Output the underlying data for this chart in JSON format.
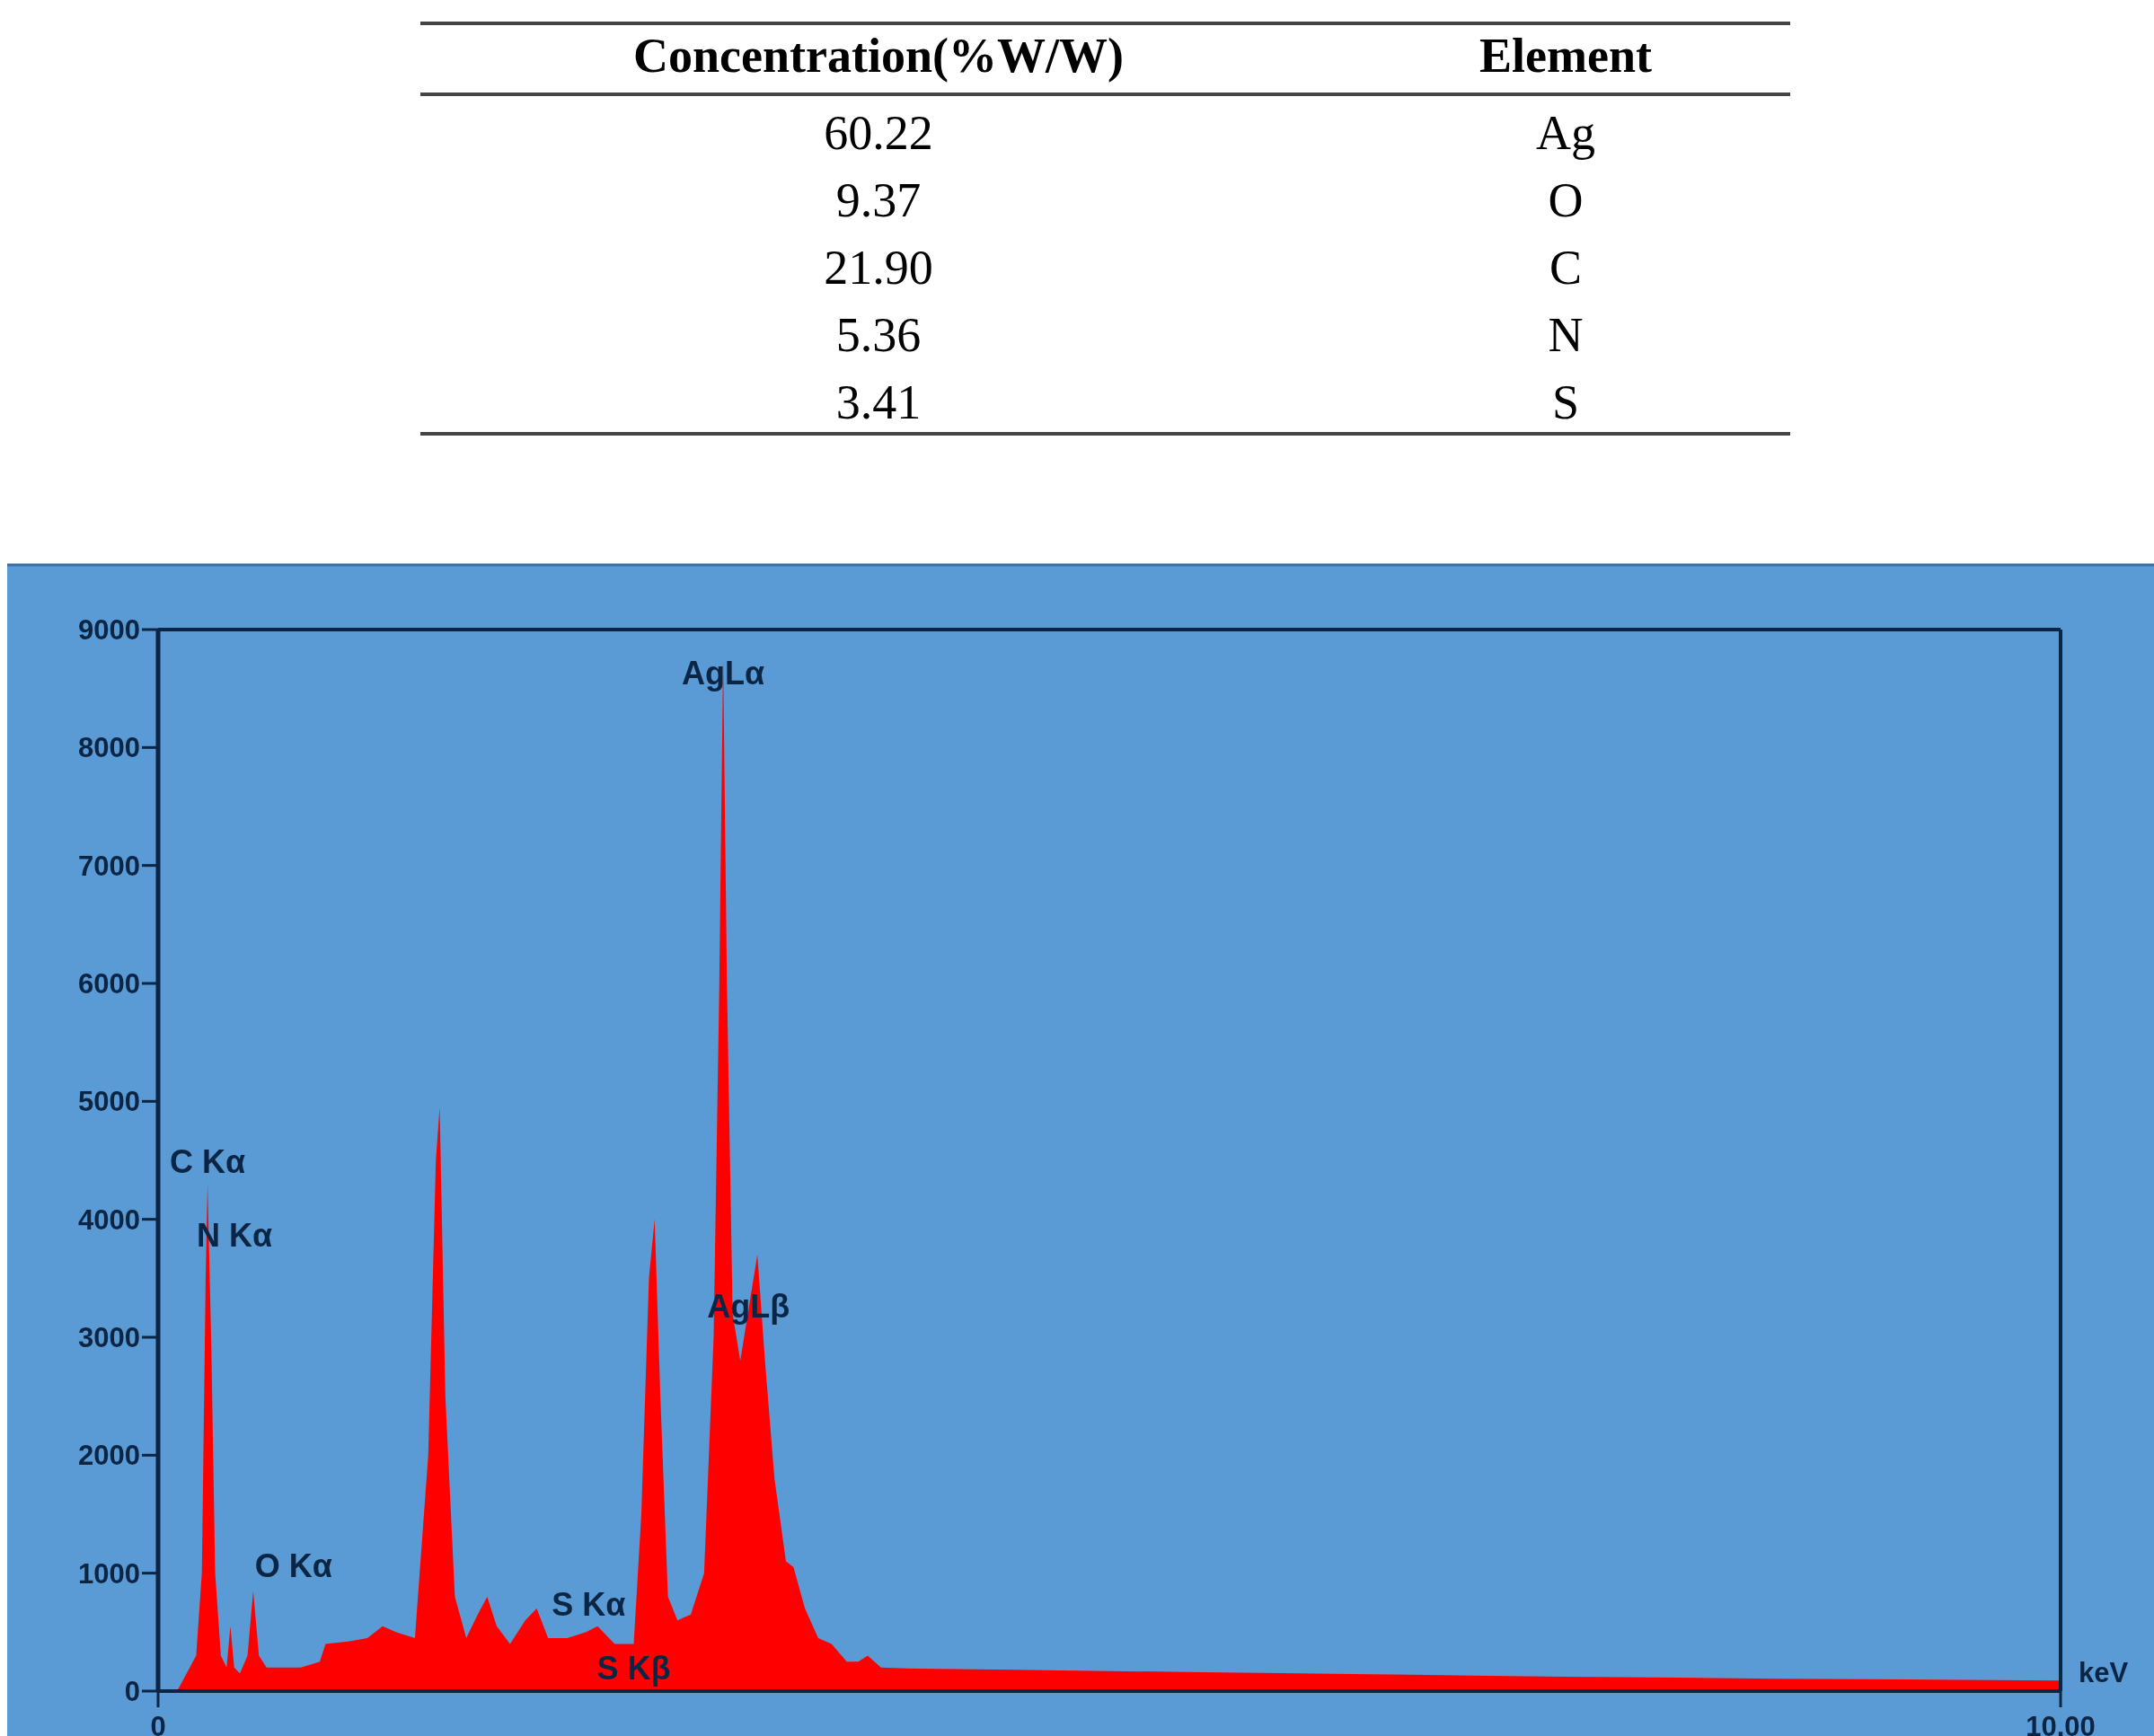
{
  "chart_data": [
    {
      "type": "other",
      "ylabel": "Concentration(%W/W)",
      "xlabel": "Element",
      "categories": [
        "Ag",
        "O",
        "C",
        "N",
        "S"
      ],
      "values": [
        60.22,
        9.37,
        21.9,
        5.36,
        3.41
      ],
      "value_labels": [
        "60.22",
        "9.37",
        "21.90",
        "5.36",
        "3.41"
      ]
    },
    {
      "type": "area",
      "xlabel": "keV",
      "color": "#ff0000",
      "x": [
        0.0,
        0.1,
        0.15,
        0.2,
        0.23,
        0.25,
        0.26,
        0.28,
        0.3,
        0.33,
        0.36,
        0.38,
        0.4,
        0.43,
        0.47,
        0.5,
        0.53,
        0.57,
        0.65,
        0.75,
        0.85,
        0.88,
        1.0,
        1.1,
        1.18,
        1.25,
        1.35,
        1.42,
        1.46,
        1.48,
        1.51,
        1.56,
        1.62,
        1.68,
        1.73,
        1.78,
        1.85,
        1.93,
        1.99,
        2.05,
        2.15,
        2.25,
        2.31,
        2.4,
        2.5,
        2.54,
        2.58,
        2.61,
        2.64,
        2.68,
        2.73,
        2.8,
        2.87,
        2.92,
        2.95,
        2.97,
        2.99,
        3.02,
        3.06,
        3.1,
        3.15,
        3.19,
        3.24,
        3.3,
        3.34,
        3.4,
        3.47,
        3.54,
        3.62,
        3.68,
        3.73,
        3.8,
        4.0,
        4.5,
        5.0,
        5.5,
        6.0,
        6.5,
        7.0,
        7.5,
        8.0,
        8.5,
        9.0,
        9.5,
        10.0
      ],
      "values": [
        0,
        0,
        150,
        300,
        1000,
        3500,
        4300,
        2900,
        1000,
        300,
        200,
        550,
        200,
        150,
        300,
        850,
        300,
        200,
        200,
        200,
        250,
        400,
        420,
        450,
        550,
        500,
        450,
        2000,
        4500,
        4950,
        2500,
        800,
        450,
        650,
        800,
        550,
        400,
        600,
        700,
        450,
        450,
        500,
        550,
        400,
        400,
        1500,
        3500,
        4000,
        2500,
        800,
        600,
        650,
        1000,
        3000,
        6000,
        8750,
        6000,
        3200,
        2800,
        3200,
        3700,
        2800,
        1800,
        1100,
        1050,
        700,
        450,
        400,
        250,
        250,
        300,
        200,
        190,
        180,
        170,
        160,
        150,
        140,
        130,
        120,
        115,
        105,
        100,
        95,
        90
      ],
      "xlim": [
        0,
        10
      ],
      "ylim": [
        0,
        9000
      ],
      "xticks": [
        {
          "value": 0,
          "label": "0"
        },
        {
          "value": 10,
          "label": "10.00"
        }
      ],
      "yticks": [
        0,
        1000,
        2000,
        3000,
        4000,
        5000,
        6000,
        7000,
        8000,
        9000
      ],
      "annotations": [
        {
          "text": "C Kα",
          "x": 0.26,
          "y": 4300
        },
        "N Kα",
        {
          "text": "O Kα",
          "x": 0.5,
          "y": 850
        },
        {
          "text": "S Kα",
          "x": 2.31,
          "y": 550
        },
        {
          "text": "S Kβ",
          "x": 2.5,
          "y": 400
        },
        {
          "text": "AgLα",
          "x": 2.97,
          "y": 8750
        },
        {
          "text": "AgLβ",
          "x": 3.15,
          "y": 3700
        }
      ]
    }
  ]
}
